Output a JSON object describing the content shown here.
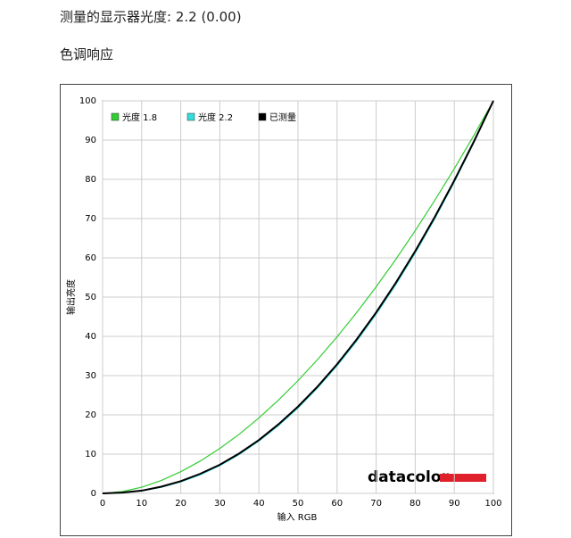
{
  "header": {
    "title": "测量的显示器光度:  2.2 (0.00)",
    "subtitle": "色调响应"
  },
  "chart_data": {
    "type": "line",
    "x_label": "输入 RGB",
    "y_label": "输出亮度",
    "watermark": "datacolor",
    "x": [
      0,
      5,
      10,
      15,
      20,
      25,
      30,
      35,
      40,
      45,
      50,
      55,
      60,
      65,
      70,
      75,
      80,
      85,
      90,
      95,
      100
    ],
    "series": [
      {
        "name": "光度 1.8",
        "color": "#33cc33",
        "values": [
          0,
          0.46,
          1.58,
          3.29,
          5.52,
          8.25,
          11.45,
          15.1,
          19.22,
          23.76,
          28.72,
          34.09,
          39.87,
          46.05,
          52.62,
          59.58,
          66.92,
          74.64,
          82.72,
          91.18,
          100
        ]
      },
      {
        "name": "光度 2.2",
        "color": "#33dddd",
        "values": [
          0,
          0.14,
          0.63,
          1.54,
          2.9,
          4.74,
          7.07,
          9.93,
          13.32,
          17.27,
          21.76,
          26.84,
          32.5,
          38.76,
          45.63,
          53.11,
          61.21,
          69.94,
          79.31,
          89.33,
          100
        ]
      },
      {
        "name": "已测量",
        "color": "#000000",
        "values": [
          0,
          0.2,
          0.7,
          1.7,
          3.1,
          5.0,
          7.3,
          10.2,
          13.6,
          17.6,
          22.1,
          27.2,
          32.9,
          39.2,
          46.1,
          53.6,
          61.7,
          70.4,
          79.7,
          89.6,
          100
        ]
      }
    ],
    "xlim": [
      0,
      100
    ],
    "ylim": [
      0,
      100
    ],
    "xticks": [
      0,
      10,
      20,
      30,
      40,
      50,
      60,
      70,
      80,
      90,
      100
    ],
    "yticks": [
      0,
      10,
      20,
      30,
      40,
      50,
      60,
      70,
      80,
      90,
      100
    ],
    "grid": true,
    "legend": "top-left"
  }
}
